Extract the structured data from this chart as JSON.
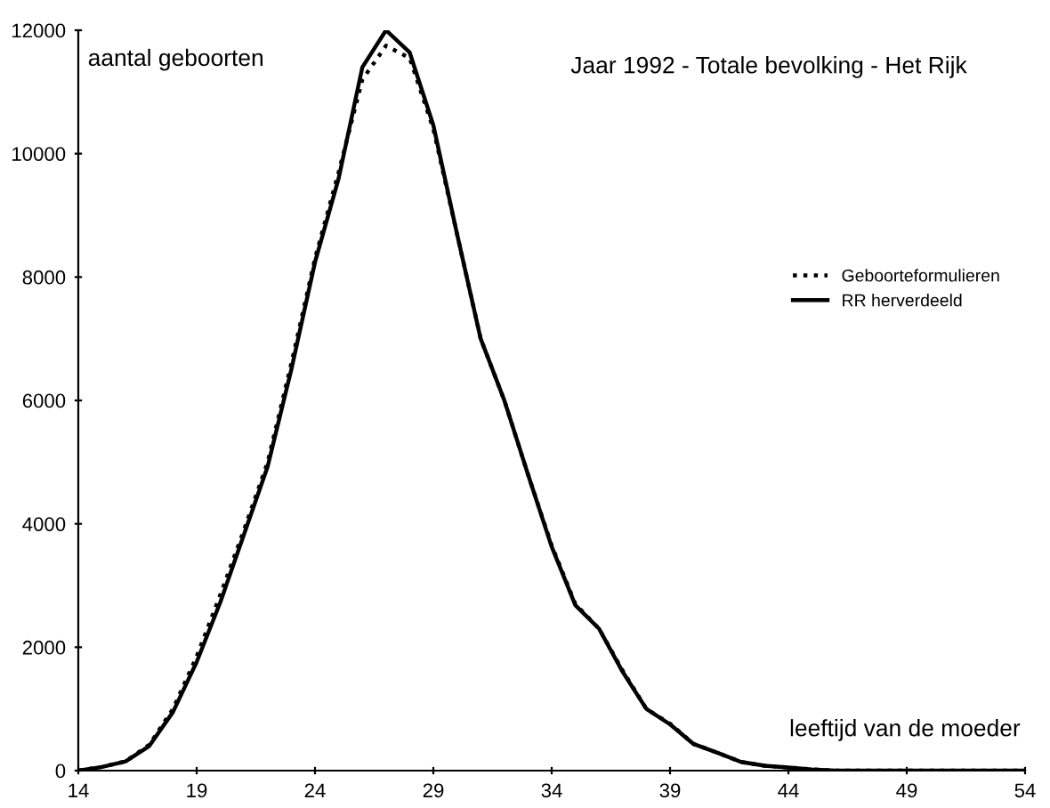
{
  "chart_data": {
    "type": "line",
    "title": "Jaar 1992 - Totale bevolking - Het Rijk",
    "xlabel": "leeftijd van de moeder",
    "ylabel": "aantal geboorten",
    "x": [
      14,
      15,
      16,
      17,
      18,
      19,
      20,
      21,
      22,
      23,
      24,
      25,
      26,
      27,
      28,
      29,
      30,
      31,
      32,
      33,
      34,
      35,
      36,
      37,
      38,
      39,
      40,
      41,
      42,
      43,
      44,
      45,
      46,
      47,
      48,
      49,
      50,
      51,
      52,
      53,
      54
    ],
    "series": [
      {
        "name": "Geboorteformulieren",
        "color": "#000000",
        "line_style": "dotted",
        "values": [
          0,
          60,
          150,
          420,
          1000,
          1850,
          2850,
          3900,
          5000,
          6600,
          8300,
          9700,
          11200,
          11750,
          11550,
          10400,
          8700,
          7000,
          6000,
          4800,
          3650,
          2700,
          2300,
          1620,
          1000,
          760,
          430,
          290,
          140,
          80,
          50,
          20,
          0,
          0,
          0,
          0,
          0,
          0,
          0,
          0,
          0
        ]
      },
      {
        "name": "RR herverdeeld",
        "color": "#000000",
        "line_style": "solid",
        "values": [
          0,
          60,
          150,
          400,
          950,
          1760,
          2730,
          3830,
          4930,
          6500,
          8240,
          9600,
          11400,
          12000,
          11640,
          10460,
          8700,
          7000,
          6000,
          4800,
          3630,
          2680,
          2300,
          1600,
          1000,
          750,
          430,
          290,
          140,
          80,
          50,
          20,
          0,
          0,
          0,
          0,
          0,
          0,
          0,
          0,
          0
        ]
      }
    ],
    "xlim": [
      14,
      54
    ],
    "xticks": [
      14,
      19,
      24,
      29,
      34,
      39,
      44,
      49,
      54
    ],
    "ylim": [
      0,
      12000
    ],
    "yticks": [
      0,
      2000,
      4000,
      6000,
      8000,
      10000,
      12000
    ],
    "grid": false,
    "legend": "right",
    "marker": "none"
  }
}
